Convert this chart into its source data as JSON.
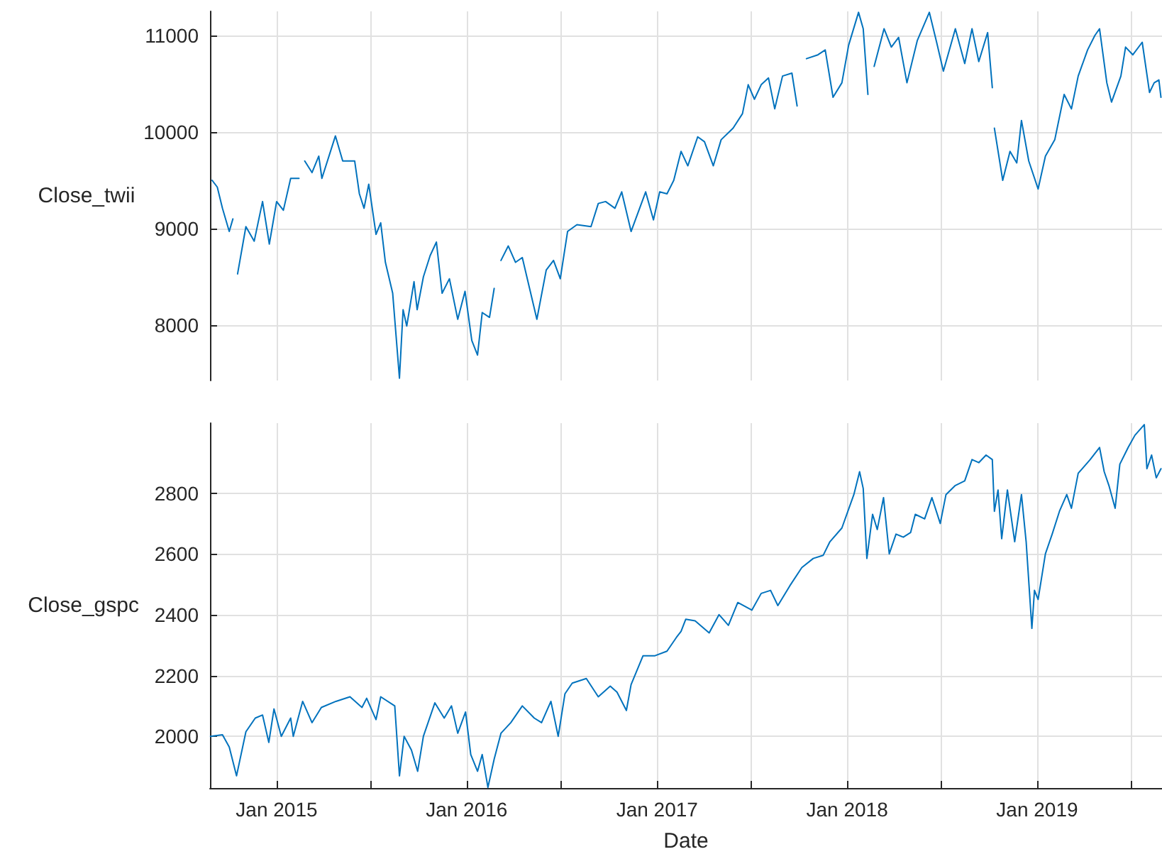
{
  "chart_data": [
    {
      "type": "line",
      "ylabel": "Close_twii",
      "xlim": [
        "2014-08-26",
        "2019-08-29"
      ],
      "ylim": [
        7426,
        11250
      ],
      "yticks": [
        8000,
        9000,
        10000,
        11000
      ],
      "xticks": [
        {
          "value": "2015-01-01",
          "label": null
        },
        {
          "value": "2015-07-01",
          "label": null
        },
        {
          "value": "2016-01-01",
          "label": null
        },
        {
          "value": "2016-07-01",
          "label": null
        },
        {
          "value": "2017-01-01",
          "label": null
        },
        {
          "value": "2017-07-01",
          "label": null
        },
        {
          "value": "2018-01-01",
          "label": null
        },
        {
          "value": "2018-07-01",
          "label": null
        },
        {
          "value": "2019-01-01",
          "label": null
        },
        {
          "value": "2019-07-01",
          "label": null
        }
      ],
      "tick_labels": "y",
      "grid": true,
      "marker": "none",
      "line_style": "solid",
      "series": [
        {
          "color": "#0072bd",
          "x": [
            "2014-08-30",
            "2014-09-09",
            "2014-09-19",
            "2014-10-02",
            "2014-10-09",
            "2014-10-12",
            "2014-10-18",
            "2014-11-03",
            "2014-11-19",
            "2014-12-05",
            "2014-12-18",
            "2015-01-01",
            "2015-01-14",
            "2015-01-28",
            "2015-02-13",
            "2015-02-18",
            "2015-02-24",
            "2015-03-10",
            "2015-03-23",
            "2015-03-29",
            "2015-04-24",
            "2015-05-08",
            "2015-05-31",
            "2015-06-09",
            "2015-06-18",
            "2015-06-27",
            "2015-07-11",
            "2015-07-20",
            "2015-07-29",
            "2015-08-12",
            "2015-08-25",
            "2015-09-01",
            "2015-09-08",
            "2015-09-22",
            "2015-09-28",
            "2015-10-10",
            "2015-10-23",
            "2015-11-04",
            "2015-11-15",
            "2015-11-29",
            "2015-12-15",
            "2015-12-29",
            "2016-01-11",
            "2016-01-22",
            "2016-01-31",
            "2016-02-14",
            "2016-02-23",
            "2016-02-28",
            "2016-03-07",
            "2016-03-21",
            "2016-04-04",
            "2016-04-17",
            "2016-05-01",
            "2016-05-15",
            "2016-06-02",
            "2016-06-16",
            "2016-06-29",
            "2016-07-13",
            "2016-07-31",
            "2016-08-27",
            "2016-09-10",
            "2016-09-24",
            "2016-10-12",
            "2016-10-25",
            "2016-11-12",
            "2016-12-10",
            "2016-12-25",
            "2017-01-06",
            "2017-01-20",
            "2017-02-02",
            "2017-02-16",
            "2017-03-01",
            "2017-03-20",
            "2017-04-02",
            "2017-04-19",
            "2017-05-04",
            "2017-05-27",
            "2017-06-14",
            "2017-06-25",
            "2017-07-07",
            "2017-07-20",
            "2017-08-03",
            "2017-08-15",
            "2017-08-30",
            "2017-09-17",
            "2017-09-27",
            "2017-10-03",
            "2017-10-15",
            "2017-11-06",
            "2017-11-20",
            "2017-12-05",
            "2017-12-22",
            "2018-01-04",
            "2018-01-23",
            "2018-02-01",
            "2018-02-10",
            "2018-02-15",
            "2018-02-22",
            "2018-03-13",
            "2018-03-27",
            "2018-04-10",
            "2018-04-26",
            "2018-05-16",
            "2018-06-08",
            "2018-06-22",
            "2018-07-05",
            "2018-07-28",
            "2018-08-15",
            "2018-08-29",
            "2018-09-11",
            "2018-09-28",
            "2018-10-07",
            "2018-10-09",
            "2018-10-11",
            "2018-10-27",
            "2018-11-10",
            "2018-11-23",
            "2018-12-02",
            "2018-12-16",
            "2019-01-03",
            "2019-01-17",
            "2019-02-04",
            "2019-02-22",
            "2019-03-08",
            "2019-03-21",
            "2019-04-08",
            "2019-04-22",
            "2019-05-01",
            "2019-05-15",
            "2019-05-24",
            "2019-06-11",
            "2019-06-20",
            "2019-07-04",
            "2019-07-22",
            "2019-08-05",
            "2019-08-14",
            "2019-08-23",
            "2019-08-27"
          ],
          "values": [
            9500,
            9430,
            9210,
            8970,
            9100,
            null,
            8530,
            9020,
            8870,
            9280,
            8840,
            9280,
            9190,
            9520,
            9520,
            null,
            9700,
            9580,
            9750,
            9520,
            9960,
            9700,
            9700,
            9360,
            9210,
            9460,
            8940,
            9060,
            8650,
            8330,
            7450,
            8160,
            7990,
            8450,
            8160,
            8500,
            8720,
            8860,
            8330,
            8480,
            8060,
            8350,
            7840,
            7690,
            8130,
            8080,
            8380,
            null,
            8670,
            8820,
            8650,
            8700,
            8380,
            8060,
            8570,
            8670,
            8480,
            8970,
            9040,
            9020,
            9260,
            9280,
            9210,
            9380,
            8970,
            9380,
            9090,
            9380,
            9360,
            9500,
            9800,
            9650,
            9950,
            9900,
            9650,
            9920,
            10040,
            10190,
            10490,
            10340,
            10490,
            10560,
            10240,
            10580,
            10610,
            10270,
            null,
            10760,
            10800,
            10850,
            10360,
            10510,
            10900,
            11240,
            11070,
            10390,
            null,
            10680,
            11070,
            10880,
            10980,
            10510,
            10950,
            11240,
            10930,
            10630,
            11070,
            10710,
            11070,
            10730,
            11030,
            10460,
            null,
            10040,
            9500,
            9800,
            9680,
            10120,
            9700,
            9410,
            9750,
            9920,
            10390,
            10240,
            10580,
            10850,
            11000,
            11070,
            10510,
            10310,
            10580,
            10880,
            10800,
            10930,
            10410,
            10510,
            10540,
            10360
          ]
        }
      ]
    },
    {
      "type": "line",
      "ylabel": "Close_gspc",
      "xlabel": "Date",
      "xlim": [
        "2014-08-26",
        "2019-08-29"
      ],
      "ylim": [
        1830,
        3030
      ],
      "yticks": [
        2000,
        2200,
        2400,
        2600,
        2800
      ],
      "xticks": [
        {
          "value": "2015-01-01",
          "label": "Jan 2015"
        },
        {
          "value": "2015-07-01",
          "label": null
        },
        {
          "value": "2016-01-01",
          "label": "Jan 2016"
        },
        {
          "value": "2016-07-01",
          "label": null
        },
        {
          "value": "2017-01-01",
          "label": "Jan 2017"
        },
        {
          "value": "2017-07-01",
          "label": null
        },
        {
          "value": "2018-01-01",
          "label": "Jan 2018"
        },
        {
          "value": "2018-07-01",
          "label": null
        },
        {
          "value": "2019-01-01",
          "label": "Jan 2019"
        },
        {
          "value": "2019-07-01",
          "label": null
        }
      ],
      "grid": true,
      "marker": "none",
      "line_style": "solid",
      "series": [
        {
          "color": "#0072bd",
          "x": [
            "2014-08-27",
            "2014-09-19",
            "2014-10-02",
            "2014-10-16",
            "2014-11-03",
            "2014-11-21",
            "2014-12-05",
            "2014-12-17",
            "2014-12-27",
            "2015-01-10",
            "2015-01-28",
            "2015-02-02",
            "2015-02-20",
            "2015-03-10",
            "2015-03-28",
            "2015-04-25",
            "2015-05-22",
            "2015-06-14",
            "2015-06-23",
            "2015-07-11",
            "2015-07-20",
            "2015-08-16",
            "2015-08-25",
            "2015-09-03",
            "2015-09-17",
            "2015-09-29",
            "2015-10-10",
            "2015-11-01",
            "2015-11-19",
            "2015-12-03",
            "2015-12-15",
            "2015-12-30",
            "2016-01-09",
            "2016-01-22",
            "2016-01-31",
            "2016-02-11",
            "2016-02-23",
            "2016-03-07",
            "2016-03-26",
            "2016-04-17",
            "2016-05-10",
            "2016-05-24",
            "2016-06-11",
            "2016-06-25",
            "2016-07-08",
            "2016-07-22",
            "2016-08-18",
            "2016-09-10",
            "2016-10-03",
            "2016-10-16",
            "2016-11-03",
            "2016-11-12",
            "2016-12-05",
            "2016-12-28",
            "2017-01-20",
            "2017-02-07",
            "2017-02-16",
            "2017-02-25",
            "2017-03-15",
            "2017-04-11",
            "2017-04-30",
            "2017-05-18",
            "2017-06-05",
            "2017-07-02",
            "2017-07-20",
            "2017-08-07",
            "2017-08-21",
            "2017-09-13",
            "2017-10-06",
            "2017-10-28",
            "2017-11-16",
            "2017-11-29",
            "2017-12-22",
            "2018-01-14",
            "2018-01-25",
            "2018-02-01",
            "2018-02-08",
            "2018-02-19",
            "2018-02-28",
            "2018-03-12",
            "2018-03-23",
            "2018-04-05",
            "2018-04-19",
            "2018-05-03",
            "2018-05-12",
            "2018-05-30",
            "2018-06-13",
            "2018-06-29",
            "2018-07-10",
            "2018-07-28",
            "2018-08-15",
            "2018-08-29",
            "2018-09-11",
            "2018-09-25",
            "2018-10-07",
            "2018-10-11",
            "2018-10-18",
            "2018-10-25",
            "2018-11-05",
            "2018-11-19",
            "2018-12-02",
            "2018-12-11",
            "2018-12-22",
            "2018-12-27",
            "2019-01-03",
            "2019-01-17",
            "2019-01-30",
            "2019-02-13",
            "2019-02-27",
            "2019-03-08",
            "2019-03-21",
            "2019-04-13",
            "2019-05-01",
            "2019-05-10",
            "2019-05-19",
            "2019-05-31",
            "2019-06-09",
            "2019-06-25",
            "2019-07-08",
            "2019-07-26",
            "2019-07-31",
            "2019-08-09",
            "2019-08-18",
            "2019-08-27"
          ],
          "values": [
            2000,
            2005,
            1965,
            1870,
            2015,
            2060,
            2070,
            1980,
            2090,
            2000,
            2060,
            2000,
            2115,
            2045,
            2095,
            2115,
            2130,
            2095,
            2125,
            2055,
            2130,
            2100,
            1870,
            2000,
            1955,
            1885,
            2000,
            2110,
            2060,
            2100,
            2010,
            2080,
            1940,
            1885,
            1940,
            1832,
            1925,
            2010,
            2045,
            2100,
            2060,
            2045,
            2115,
            2000,
            2140,
            2175,
            2190,
            2130,
            2165,
            2145,
            2085,
            2170,
            2265,
            2265,
            2280,
            2325,
            2345,
            2385,
            2380,
            2340,
            2400,
            2365,
            2440,
            2415,
            2470,
            2480,
            2430,
            2495,
            2555,
            2585,
            2595,
            2640,
            2685,
            2795,
            2870,
            2815,
            2585,
            2730,
            2680,
            2785,
            2600,
            2665,
            2655,
            2670,
            2730,
            2715,
            2785,
            2700,
            2795,
            2825,
            2840,
            2910,
            2900,
            2925,
            2910,
            2740,
            2810,
            2650,
            2810,
            2640,
            2795,
            2640,
            2355,
            2480,
            2450,
            2600,
            2665,
            2740,
            2795,
            2750,
            2865,
            2910,
            2950,
            2870,
            2825,
            2750,
            2895,
            2950,
            2990,
            3025,
            2880,
            2925,
            2850,
            2880
          ]
        }
      ]
    }
  ]
}
